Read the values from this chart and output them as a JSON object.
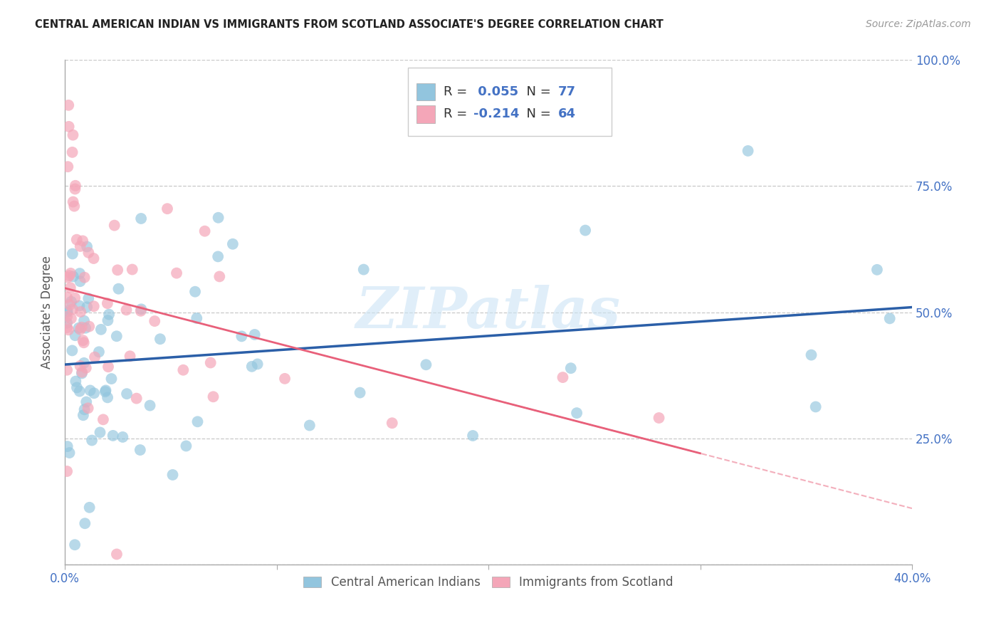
{
  "title": "CENTRAL AMERICAN INDIAN VS IMMIGRANTS FROM SCOTLAND ASSOCIATE'S DEGREE CORRELATION CHART",
  "source": "Source: ZipAtlas.com",
  "ylabel": "Associate's Degree",
  "xlim": [
    0.0,
    0.4
  ],
  "ylim": [
    0.0,
    1.0
  ],
  "xticks": [
    0.0,
    0.1,
    0.2,
    0.3,
    0.4
  ],
  "xtick_labels": [
    "0.0%",
    "",
    "",
    "",
    "40.0%"
  ],
  "yticks": [
    0.0,
    0.25,
    0.5,
    0.75,
    1.0
  ],
  "ytick_labels_right": [
    "",
    "25.0%",
    "50.0%",
    "75.0%",
    "100.0%"
  ],
  "blue_R": 0.055,
  "blue_N": 77,
  "pink_R": -0.214,
  "pink_N": 64,
  "blue_color": "#92c5de",
  "pink_color": "#f4a6b8",
  "blue_line_color": "#2b5fa8",
  "pink_line_color": "#e8607a",
  "axis_color": "#4472c4",
  "legend_label_blue": "Central American Indians",
  "legend_label_pink": "Immigrants from Scotland",
  "watermark_text": "ZIPatlas",
  "background_color": "#ffffff",
  "grid_color": "#c8c8c8"
}
